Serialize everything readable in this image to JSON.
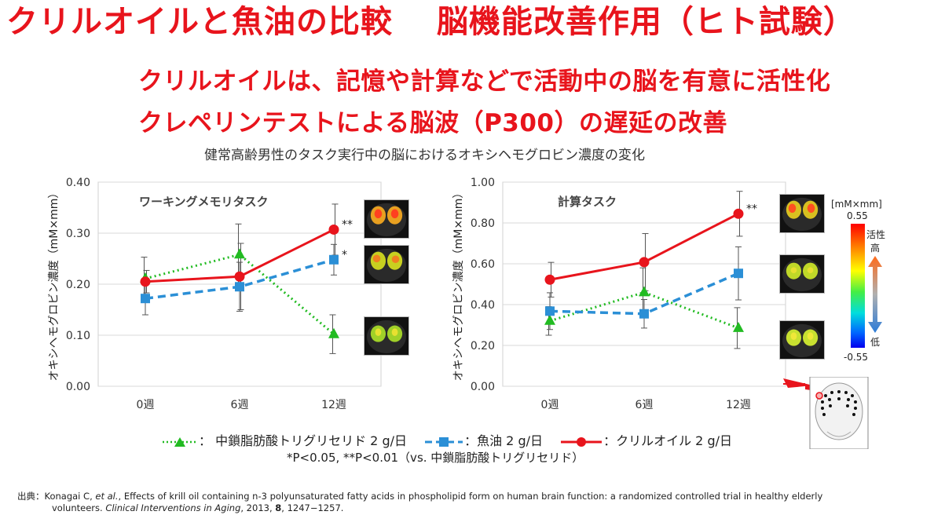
{
  "title": "クリルオイルと魚油の比較　 脳機能改善作用（ヒト試験）",
  "subtitle_lines": [
    "クリルオイルは、記憶や計算などで活動中の脳を有意に活性化",
    "クレペリンテストによる脳波（P300）の遅延の改善"
  ],
  "caption": "健常高齢男性のタスク実行中の脳におけるオキシヘモグロビン濃度の変化",
  "colors": {
    "accent_red": "#e8141c",
    "mct": "#22bb22",
    "fish": "#2b8fd6",
    "krill": "#e8141c"
  },
  "chart_data": [
    {
      "type": "line",
      "title": "ワーキングメモリタスク",
      "ylabel": "オキシヘモグロビン濃度（mM×mm）",
      "categories": [
        "0週",
        "6週",
        "12週"
      ],
      "ylim": [
        0,
        0.4
      ],
      "yticks": [
        "0.00",
        "0.10",
        "0.20",
        "0.30",
        "0.40"
      ],
      "series": [
        {
          "name": "中鎖脂肪酸トリグリセリド 2 g/日",
          "values": [
            0.211,
            0.258,
            0.102
          ],
          "err": [
            0.042,
            0.06,
            0.038
          ]
        },
        {
          "name": "魚油 2 g/日",
          "values": [
            0.172,
            0.195,
            0.248
          ],
          "err": [
            0.032,
            0.048,
            0.03
          ]
        },
        {
          "name": "クリルオイル 2 g/日",
          "values": [
            0.205,
            0.215,
            0.307
          ],
          "err": [
            0.022,
            0.065,
            0.05
          ]
        }
      ],
      "annotations": [
        {
          "series": 2,
          "index": 2,
          "text": "**"
        },
        {
          "series": 1,
          "index": 2,
          "text": "*"
        }
      ]
    },
    {
      "type": "line",
      "title": "計算タスク",
      "ylabel": "オキシヘモグロビン濃度（mM×mm）",
      "categories": [
        "0週",
        "6週",
        "12週"
      ],
      "ylim": [
        0,
        1.0
      ],
      "yticks": [
        "0.00",
        "0.20",
        "0.40",
        "0.60",
        "0.80",
        "1.00"
      ],
      "series": [
        {
          "name": "中鎖脂肪酸トリグリセリド 2 g/日",
          "values": [
            0.32,
            0.46,
            0.285
          ],
          "err": [
            0.07,
            0.12,
            0.1
          ]
        },
        {
          "name": "魚油 2 g/日",
          "values": [
            0.368,
            0.355,
            0.553
          ],
          "err": [
            0.09,
            0.07,
            0.13
          ]
        },
        {
          "name": "クリルオイル 2 g/日",
          "values": [
            0.522,
            0.608,
            0.845
          ],
          "err": [
            0.085,
            0.14,
            0.11
          ]
        }
      ],
      "annotations": [
        {
          "series": 2,
          "index": 2,
          "text": "**"
        }
      ]
    }
  ],
  "colorbar": {
    "unit": "[mM×mm]",
    "max": "0.55",
    "min": "-0.55",
    "high_label_1": "活性",
    "high_label_2": "高",
    "low_label": "低"
  },
  "legend": {
    "mct": "： 中鎖脂肪酸トリグリセリド 2 g/日",
    "fish": "：魚油 2 g/日",
    "krill": "：クリルオイル 2 g/日"
  },
  "significance_note": "*P<0.05,  **P<0.01（vs. 中鎖脂肪酸トリグリセリド）",
  "citation": {
    "prefix": "出典：Konagai C, ",
    "etal": "et al.",
    "text1": ", Effects of krill oil containing n-3 polyunsaturated fatty acids in phospholipid form on human brain function: a randomized controlled trial in healthy elderly",
    "text2": "volunteers. ",
    "journal": "Clinical Interventions in Aging",
    "text3": ", 2013, ",
    "volume": "8",
    "text4": ", 1247−1257."
  }
}
